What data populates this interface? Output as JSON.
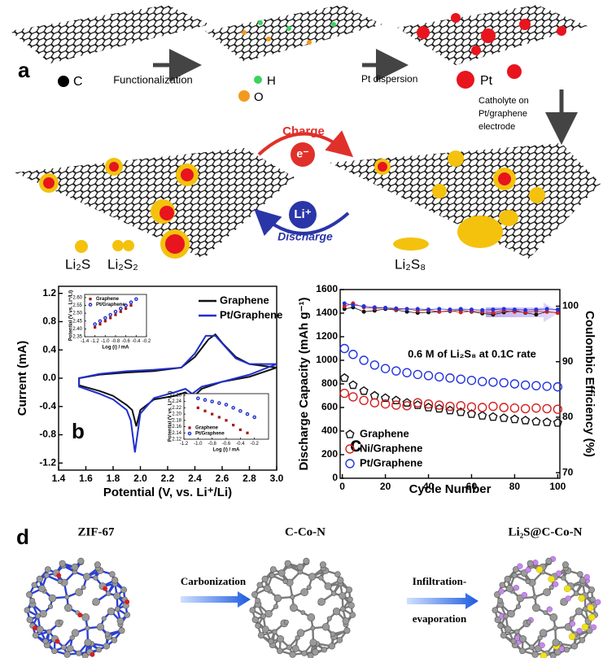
{
  "panel_a": {
    "label": "a",
    "legend_c": "C",
    "step1": "Functionalization",
    "legend_h": "H",
    "legend_o": "O",
    "step2": "Pt dispersion",
    "legend_pt": "Pt",
    "step3": [
      "Catholyte on",
      "Pt/graphene",
      "electrode"
    ],
    "charge": "Charge",
    "electron": "e⁻",
    "ion": "Li⁺",
    "discharge": "Discharge",
    "products": [
      "Li₂S",
      "Li₂S₂",
      "Li₂S₈"
    ]
  },
  "panel_d": {
    "label": "d",
    "structures": [
      "ZIF-67",
      "C-Co-N",
      "Li₂S@C-Co-N"
    ],
    "steps": [
      "Carbonization",
      "Infiltration-",
      "evaporation"
    ]
  },
  "chart_data": [
    {
      "type": "line",
      "panel_label": "b",
      "x_label": "Potential (V, vs. Li⁺/Li)",
      "y_label": "Current (mA)",
      "xlim": [
        1.4,
        3.0
      ],
      "xticks": [
        1.4,
        1.6,
        1.8,
        {
          "value": 2,
          "label": "2.0"
        },
        2.2,
        2.4,
        2.6,
        2.8,
        {
          "value": 3,
          "label": "3.0"
        }
      ],
      "ylim": [
        -1.3,
        1.3
      ],
      "yticks": [
        -1.2,
        -0.8,
        -0.4,
        {
          "value": 0,
          "label": "0.0"
        },
        0.4,
        0.8,
        1.2
      ],
      "legend": "upper right",
      "series": [
        {
          "name": "Graphene",
          "color": "#111111",
          "x": [
            3.0,
            2.8,
            2.6,
            2.45,
            2.38,
            2.33,
            2.25,
            2.1,
            2.0,
            1.97,
            1.94,
            1.9,
            1.8,
            1.7,
            1.55,
            1.55,
            1.7,
            1.9,
            2.1,
            2.3,
            2.4,
            2.5,
            2.55,
            2.6,
            2.7,
            2.8,
            3.0
          ],
          "values": [
            0.15,
            0.02,
            -0.05,
            -0.15,
            -0.28,
            -0.2,
            -0.25,
            -0.3,
            -0.45,
            -0.68,
            -0.45,
            -0.38,
            -0.25,
            -0.18,
            -0.1,
            0.0,
            0.05,
            0.08,
            0.1,
            0.15,
            0.3,
            0.55,
            0.62,
            0.5,
            0.3,
            0.2,
            0.15
          ]
        },
        {
          "name": "Pt/Graphene",
          "color": "#1f2fd0",
          "x": [
            3.0,
            2.8,
            2.6,
            2.45,
            2.38,
            2.33,
            2.25,
            2.1,
            2.0,
            1.96,
            1.93,
            1.9,
            1.8,
            1.7,
            1.55,
            1.55,
            1.7,
            1.9,
            2.1,
            2.3,
            2.4,
            2.48,
            2.55,
            2.62,
            2.7,
            2.8,
            3.0
          ],
          "values": [
            0.2,
            0.05,
            -0.05,
            -0.12,
            -0.22,
            -0.15,
            -0.2,
            -0.28,
            -0.5,
            -1.05,
            -0.6,
            -0.45,
            -0.3,
            -0.22,
            -0.12,
            0.0,
            0.06,
            0.1,
            0.12,
            0.15,
            0.35,
            0.6,
            0.6,
            0.45,
            0.28,
            0.2,
            0.2
          ]
        }
      ]
    },
    {
      "type": "scatter",
      "x_label": "Log (i) / mA",
      "y_label": "Potential (V vs. Li⁺/Li)",
      "xlim": [
        -1.4,
        -0.2
      ],
      "xticks": [
        -1.4,
        -1.2,
        {
          "value": -1,
          "label": "-1.0"
        },
        -0.8,
        -0.6,
        -0.4,
        -0.2
      ],
      "ylim": [
        2.35,
        2.62
      ],
      "yticks": [
        2.35,
        {
          "value": 2.4,
          "label": "2.40"
        },
        2.45,
        {
          "value": 2.5,
          "label": "2.50"
        },
        2.55,
        {
          "value": 2.6,
          "label": "2.60"
        }
      ],
      "legend": "upper left",
      "series": [
        {
          "name": "Graphene",
          "color": "#a31515",
          "marker": "square",
          "x": [
            -1.2,
            -1.1,
            -1.0,
            -0.9,
            -0.8,
            -0.7,
            -0.6,
            -0.5
          ],
          "values": [
            2.41,
            2.43,
            2.45,
            2.47,
            2.49,
            2.51,
            2.53,
            2.55
          ]
        },
        {
          "name": "Pt/Graphene",
          "color": "#2233cc",
          "marker": "circle",
          "x": [
            -1.2,
            -1.1,
            -1.0,
            -0.9,
            -0.8,
            -0.7,
            -0.6,
            -0.5,
            -0.4
          ],
          "values": [
            2.43,
            2.45,
            2.47,
            2.49,
            2.51,
            2.53,
            2.55,
            2.57,
            2.59
          ]
        }
      ]
    },
    {
      "type": "scatter",
      "x_label": "Log (i) / mA",
      "y_label": "Potential (V vs. Li⁺/Li)",
      "xlim": [
        -1.2,
        0
      ],
      "xticks": [
        -1.2,
        {
          "value": -1,
          "label": "-1.0"
        },
        -0.8,
        -0.6,
        -0.4,
        -0.2
      ],
      "ylim": [
        2.12,
        2.265
      ],
      "yticks": [
        2.12,
        2.14,
        2.16,
        2.18,
        {
          "value": 2.2,
          "label": "2.20"
        },
        2.22,
        2.24,
        2.26
      ],
      "legend": "lower left",
      "series": [
        {
          "name": "Graphene",
          "color": "#a31515",
          "marker": "square",
          "x": [
            -1.0,
            -0.9,
            -0.8,
            -0.7,
            -0.6,
            -0.5,
            -0.4,
            -0.3
          ],
          "values": [
            2.22,
            2.21,
            2.2,
            2.19,
            2.18,
            2.165,
            2.15,
            2.14
          ]
        },
        {
          "name": "Pt/Graphene",
          "color": "#2233cc",
          "marker": "circle",
          "x": [
            -1.0,
            -0.9,
            -0.8,
            -0.7,
            -0.6,
            -0.5,
            -0.4,
            -0.3,
            -0.2
          ],
          "values": [
            2.25,
            2.245,
            2.24,
            2.235,
            2.23,
            2.22,
            2.21,
            2.2,
            2.19
          ]
        }
      ]
    },
    {
      "type": "scatter",
      "panel_label": "c",
      "x_label": "Cycle Number",
      "y_label": "Discharge Capacity (mAh g⁻¹)",
      "y2_label": "Coulombic Efficiency (%)",
      "annotation": "0.6 M of Li₂S₈ at 0.1C rate",
      "x": [
        1,
        5,
        10,
        15,
        20,
        25,
        30,
        35,
        40,
        45,
        50,
        55,
        60,
        65,
        70,
        75,
        80,
        85,
        90,
        95,
        100
      ],
      "xlim": [
        -1,
        101
      ],
      "xticks": [
        0,
        20,
        40,
        60,
        80,
        100
      ],
      "ylim": [
        0,
        1600
      ],
      "yticks": [
        0,
        200,
        400,
        600,
        800,
        1000,
        1200,
        1400,
        1600
      ],
      "y2lim": [
        69,
        103
      ],
      "y2ticks": [
        70,
        80,
        90,
        100
      ],
      "legend": "lower left",
      "series": [
        {
          "name": "Graphene",
          "color": "#111111",
          "marker": "pentagon",
          "values": [
            850,
            790,
            740,
            700,
            680,
            660,
            640,
            620,
            600,
            590,
            575,
            560,
            545,
            530,
            520,
            510,
            500,
            490,
            480,
            475,
            470
          ]
        },
        {
          "name": "Ni/Graphene",
          "color": "#d42020",
          "marker": "circle",
          "values": [
            720,
            690,
            660,
            640,
            630,
            620,
            615,
            640,
            630,
            620,
            610,
            615,
            605,
            600,
            610,
            600,
            595,
            590,
            595,
            590,
            585
          ]
        },
        {
          "name": "Pt/Graphene",
          "color": "#2233dd",
          "marker": "circle",
          "values": [
            1100,
            1050,
            1000,
            960,
            930,
            910,
            895,
            880,
            870,
            860,
            850,
            840,
            830,
            820,
            815,
            810,
            800,
            790,
            785,
            780,
            775
          ]
        },
        {
          "color": "#111111",
          "marker": "dot",
          "axis": "y2",
          "values": [
            99.5,
            99.8,
            99,
            99.2,
            99.5,
            99.3,
            99,
            98.8,
            98.9,
            99,
            99.1,
            99.3,
            99,
            98.7,
            98.5,
            98.9,
            99.2,
            98.8,
            98.5,
            99,
            98.8
          ]
        },
        {
          "color": "#d42020",
          "marker": "dot",
          "axis": "y2",
          "values": [
            100,
            100.5,
            99.8,
            99.6,
            99.7,
            99.4,
            99.5,
            99.2,
            99.3,
            99,
            99.2,
            98.9,
            99.1,
            99,
            98.8,
            99.2,
            99,
            98.9,
            99.1,
            99,
            98.8
          ]
        },
        {
          "color": "#2233dd",
          "marker": "dot",
          "axis": "y2",
          "values": [
            100.5,
            100.2,
            100,
            99.8,
            99.7,
            99.6,
            99.5,
            99.5,
            99.4,
            99.5,
            99.4,
            99.5,
            99.4,
            99.3,
            99.4,
            99.5,
            99.4,
            99.3,
            99.4,
            99.5,
            99.4
          ]
        }
      ]
    }
  ]
}
